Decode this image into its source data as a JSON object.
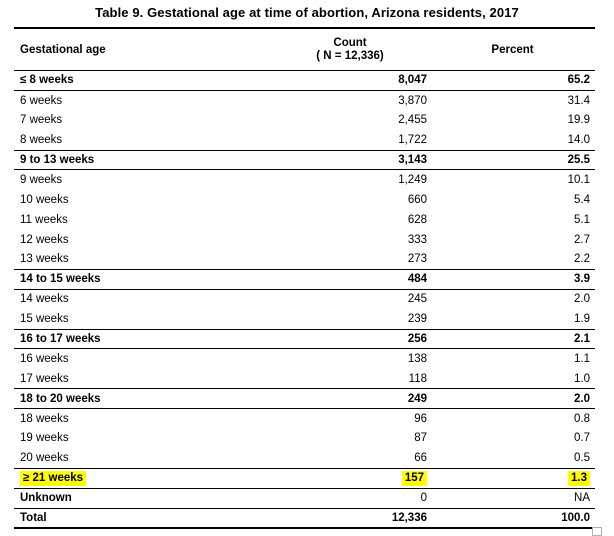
{
  "title": "Table 9. Gestational age at time of abortion, Arizona residents, 2017",
  "colors": {
    "highlight": "#ffff00",
    "text": "#000000",
    "rule": "#000000",
    "background": "#ffffff"
  },
  "table": {
    "header": {
      "gestational_age": "Gestational age",
      "count_line1": "Count",
      "count_line2": "( N = 12,336)",
      "percent": "Percent"
    },
    "rows": [
      {
        "label": "≤ 8 weeks",
        "count": "8,047",
        "percent": "65.2",
        "style": "group",
        "highlighted": false
      },
      {
        "label": "6 weeks",
        "count": "3,870",
        "percent": "31.4",
        "style": "detail",
        "highlighted": false
      },
      {
        "label": "7 weeks",
        "count": "2,455",
        "percent": "19.9",
        "style": "detail",
        "highlighted": false
      },
      {
        "label": "8 weeks",
        "count": "1,722",
        "percent": "14.0",
        "style": "detail",
        "highlighted": false
      },
      {
        "label": "9 to 13 weeks",
        "count": "3,143",
        "percent": "25.5",
        "style": "group",
        "highlighted": false
      },
      {
        "label": "9 weeks",
        "count": "1,249",
        "percent": "10.1",
        "style": "detail",
        "highlighted": false
      },
      {
        "label": "10 weeks",
        "count": "660",
        "percent": "5.4",
        "style": "detail",
        "highlighted": false
      },
      {
        "label": "11 weeks",
        "count": "628",
        "percent": "5.1",
        "style": "detail",
        "highlighted": false
      },
      {
        "label": "12 weeks",
        "count": "333",
        "percent": "2.7",
        "style": "detail",
        "highlighted": false
      },
      {
        "label": "13 weeks",
        "count": "273",
        "percent": "2.2",
        "style": "detail",
        "highlighted": false
      },
      {
        "label": "14 to 15 weeks",
        "count": "484",
        "percent": "3.9",
        "style": "group",
        "highlighted": false
      },
      {
        "label": "14 weeks",
        "count": "245",
        "percent": "2.0",
        "style": "detail",
        "highlighted": false
      },
      {
        "label": "15 weeks",
        "count": "239",
        "percent": "1.9",
        "style": "detail",
        "highlighted": false
      },
      {
        "label": "16 to 17 weeks",
        "count": "256",
        "percent": "2.1",
        "style": "group",
        "highlighted": false
      },
      {
        "label": "16 weeks",
        "count": "138",
        "percent": "1.1",
        "style": "detail",
        "highlighted": false
      },
      {
        "label": "17 weeks",
        "count": "118",
        "percent": "1.0",
        "style": "detail",
        "highlighted": false
      },
      {
        "label": "18 to 20 weeks",
        "count": "249",
        "percent": "2.0",
        "style": "group",
        "highlighted": false
      },
      {
        "label": "18 weeks",
        "count": "96",
        "percent": "0.8",
        "style": "detail",
        "highlighted": false
      },
      {
        "label": "19 weeks",
        "count": "87",
        "percent": "0.7",
        "style": "detail",
        "highlighted": false
      },
      {
        "label": "20 weeks",
        "count": "66",
        "percent": "0.5",
        "style": "detail",
        "highlighted": false
      },
      {
        "label": "≥ 21 weeks",
        "count": "157",
        "percent": "1.3",
        "style": "group",
        "highlighted": true
      },
      {
        "label": "Unknown",
        "count": "0",
        "percent": "NA",
        "style": "unknown",
        "highlighted": false
      },
      {
        "label": "Total",
        "count": "12,336",
        "percent": "100.0",
        "style": "total",
        "highlighted": false
      }
    ]
  },
  "chart_data": {
    "type": "table",
    "title": "Table 9. Gestational age at time of abortion, Arizona residents, 2017",
    "columns": [
      "Gestational age",
      "Count ( N = 12,336)",
      "Percent"
    ],
    "total_n": 12336,
    "rows": [
      {
        "gestational_age": "≤ 8 weeks",
        "count": 8047,
        "percent": 65.2,
        "is_summary": true
      },
      {
        "gestational_age": "6 weeks",
        "count": 3870,
        "percent": 31.4,
        "is_summary": false
      },
      {
        "gestational_age": "7 weeks",
        "count": 2455,
        "percent": 19.9,
        "is_summary": false
      },
      {
        "gestational_age": "8 weeks",
        "count": 1722,
        "percent": 14.0,
        "is_summary": false
      },
      {
        "gestational_age": "9 to 13 weeks",
        "count": 3143,
        "percent": 25.5,
        "is_summary": true
      },
      {
        "gestational_age": "9 weeks",
        "count": 1249,
        "percent": 10.1,
        "is_summary": false
      },
      {
        "gestational_age": "10 weeks",
        "count": 660,
        "percent": 5.4,
        "is_summary": false
      },
      {
        "gestational_age": "11 weeks",
        "count": 628,
        "percent": 5.1,
        "is_summary": false
      },
      {
        "gestational_age": "12 weeks",
        "count": 333,
        "percent": 2.7,
        "is_summary": false
      },
      {
        "gestational_age": "13 weeks",
        "count": 273,
        "percent": 2.2,
        "is_summary": false
      },
      {
        "gestational_age": "14 to 15 weeks",
        "count": 484,
        "percent": 3.9,
        "is_summary": true
      },
      {
        "gestational_age": "14 weeks",
        "count": 245,
        "percent": 2.0,
        "is_summary": false
      },
      {
        "gestational_age": "15 weeks",
        "count": 239,
        "percent": 1.9,
        "is_summary": false
      },
      {
        "gestational_age": "16 to 17 weeks",
        "count": 256,
        "percent": 2.1,
        "is_summary": true
      },
      {
        "gestational_age": "16 weeks",
        "count": 138,
        "percent": 1.1,
        "is_summary": false
      },
      {
        "gestational_age": "17 weeks",
        "count": 118,
        "percent": 1.0,
        "is_summary": false
      },
      {
        "gestational_age": "18 to 20 weeks",
        "count": 249,
        "percent": 2.0,
        "is_summary": true
      },
      {
        "gestational_age": "18 weeks",
        "count": 96,
        "percent": 0.8,
        "is_summary": false
      },
      {
        "gestational_age": "19 weeks",
        "count": 87,
        "percent": 0.7,
        "is_summary": false
      },
      {
        "gestational_age": "20 weeks",
        "count": 66,
        "percent": 0.5,
        "is_summary": false
      },
      {
        "gestational_age": "≥ 21 weeks",
        "count": 157,
        "percent": 1.3,
        "is_summary": true
      },
      {
        "gestational_age": "Unknown",
        "count": 0,
        "percent": null,
        "is_summary": false
      },
      {
        "gestational_age": "Total",
        "count": 12336,
        "percent": 100.0,
        "is_summary": true
      }
    ],
    "highlighted_row": "≥ 21 weeks",
    "notes": "Percent for Unknown shown as NA; yellow highlight on the ≥ 21 weeks row"
  }
}
